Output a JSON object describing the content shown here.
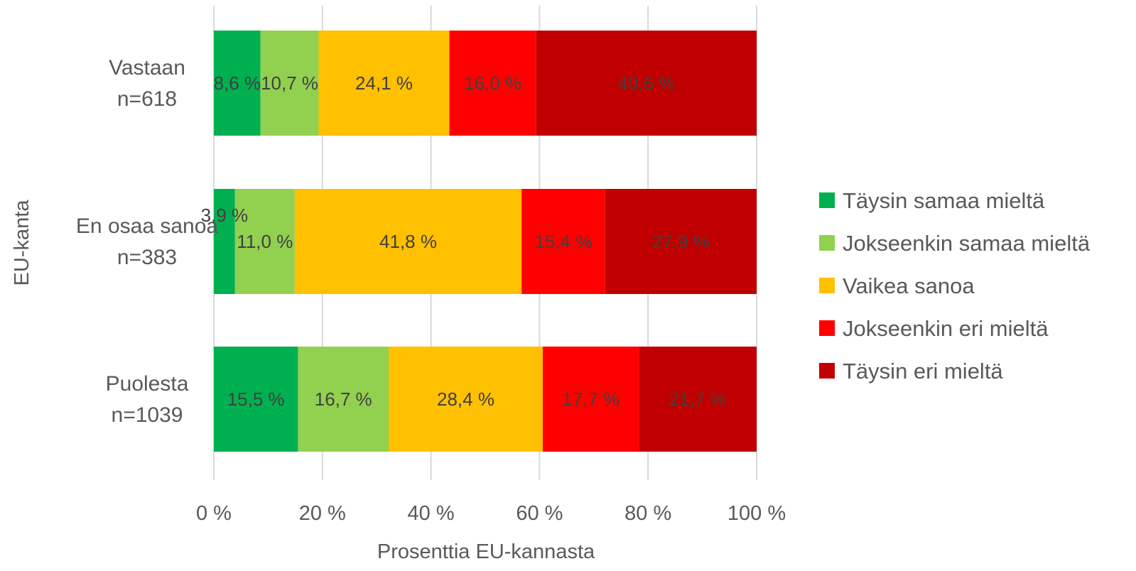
{
  "chart_data": {
    "type": "bar",
    "orientation": "horizontal",
    "stacked": "percent",
    "xlabel": "Prosenttia EU-kannasta",
    "ylabel": "EU-kanta",
    "xlim": [
      0,
      100
    ],
    "x_ticks": [
      "0 %",
      "20 %",
      "40 %",
      "60 %",
      "80 %",
      "100 %"
    ],
    "grid": true,
    "legend_position": "right",
    "categories": [
      [
        "Vastaan",
        "n=618"
      ],
      [
        "En osaa sanoa",
        "n=383"
      ],
      [
        "Puolesta",
        "n=1039"
      ]
    ],
    "series": [
      {
        "name": "Täysin samaa mieltä",
        "color": "#00B050",
        "values": [
          8.6,
          3.9,
          15.5
        ],
        "labels": [
          "8,6 %",
          "3,9 %",
          "15,5 %"
        ]
      },
      {
        "name": "Jokseenkin samaa mieltä",
        "color": "#92D050",
        "values": [
          10.7,
          11.0,
          16.7
        ],
        "labels": [
          "10,7 %",
          "11,0 %",
          "16,7 %"
        ]
      },
      {
        "name": "Vaikea sanoa",
        "color": "#FFC000",
        "values": [
          24.1,
          41.8,
          28.4
        ],
        "labels": [
          "24,1 %",
          "41,8 %",
          "28,4 %"
        ]
      },
      {
        "name": "Jokseenkin eri mieltä",
        "color": "#FF0000",
        "values": [
          16.0,
          15.4,
          17.7
        ],
        "labels": [
          "16,0 %",
          "15,4 %",
          "17,7 %"
        ]
      },
      {
        "name": "Täysin eri mieltä",
        "color": "#C00000",
        "values": [
          40.6,
          27.9,
          21.7
        ],
        "labels": [
          "40,6 %",
          "27,9 %",
          "21,7 %"
        ]
      }
    ]
  }
}
